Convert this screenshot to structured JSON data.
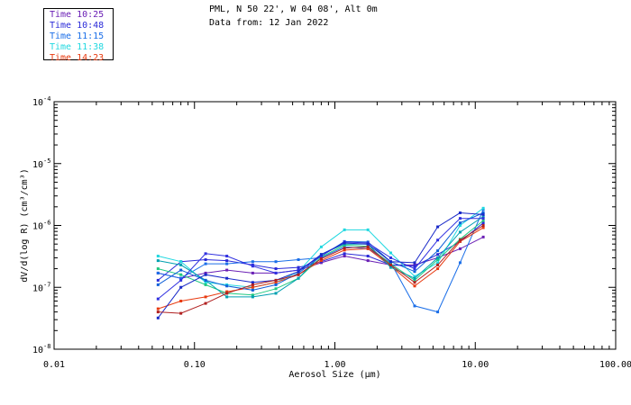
{
  "header": {
    "location": "PML, N 50 22', W 04 08', Alt 0m",
    "date": "Data from: 12 Jan 2022"
  },
  "chart_data": {
    "type": "line",
    "title": "",
    "xlabel": "Aerosol Size (μm)",
    "ylabel": "dV/d(log R) (cm³/cm³)",
    "xscale": "log",
    "yscale": "log",
    "xlim": [
      0.01,
      100
    ],
    "ylim": [
      1e-08,
      0.0001
    ],
    "x_ticks": [
      {
        "value": 0.01,
        "label": "0.01"
      },
      {
        "value": 0.1,
        "label": "0.10"
      },
      {
        "value": 1,
        "label": "1.00"
      },
      {
        "value": 10,
        "label": "10.00"
      },
      {
        "value": 100,
        "label": "100.00"
      }
    ],
    "y_ticks": [
      {
        "value": 1e-08,
        "mantissa": "10",
        "exponent": "-8"
      },
      {
        "value": 1e-07,
        "mantissa": "10",
        "exponent": "-7"
      },
      {
        "value": 1e-06,
        "mantissa": "10",
        "exponent": "-6"
      },
      {
        "value": 1e-05,
        "mantissa": "10",
        "exponent": "-5"
      },
      {
        "value": 0.0001,
        "mantissa": "10",
        "exponent": "-4"
      }
    ],
    "x": [
      0.055,
      0.08,
      0.12,
      0.17,
      0.26,
      0.38,
      0.55,
      0.8,
      1.17,
      1.72,
      2.5,
      3.7,
      5.4,
      7.8,
      11.4
    ],
    "series": [
      {
        "name": "Time 10:25",
        "color": "#6a1fb5",
        "values": [
          1.7e-07,
          1.4e-07,
          1.7e-07,
          1.9e-07,
          1.7e-07,
          1.7e-07,
          1.9e-07,
          2.5e-07,
          3.2e-07,
          2.7e-07,
          2.3e-07,
          2.3e-07,
          3e-07,
          4.2e-07,
          6.5e-07
        ]
      },
      {
        "name": "Time 10:48",
        "color": "#2a2ad8",
        "values": [
          1.3e-07,
          2.6e-07,
          2.8e-07,
          2.7e-07,
          2.3e-07,
          2e-07,
          2.1e-07,
          2.6e-07,
          3.5e-07,
          3.2e-07,
          2.3e-07,
          2.2e-07,
          3.4e-07,
          5.5e-07,
          1.1e-06
        ]
      },
      {
        "name": "Time 11:15",
        "color": "#1a6ee8",
        "values": [
          1.7e-07,
          1.4e-07,
          2.4e-07,
          2.4e-07,
          2.6e-07,
          2.6e-07,
          2.8e-07,
          3e-07,
          4.5e-07,
          4.2e-07,
          2.5e-07,
          5e-08,
          4e-08,
          2.5e-07,
          1.8e-06
        ]
      },
      {
        "name": "Time 11:38",
        "color": "#20d8e0",
        "values": [
          3.2e-07,
          2.6e-07,
          1.2e-07,
          1.1e-07,
          1e-07,
          1.2e-07,
          1.8e-07,
          4.5e-07,
          8.5e-07,
          8.5e-07,
          3.6e-07,
          1.5e-07,
          2.5e-07,
          1e-06,
          1.9e-06
        ]
      },
      {
        "name": "Time 14:23",
        "color": "#e83a10",
        "values": [
          4.5e-08,
          6e-08,
          7e-08,
          8.5e-08,
          1e-07,
          1.2e-07,
          1.6e-07,
          2.7e-07,
          4e-07,
          4.2e-07,
          2.2e-07,
          1.05e-07,
          2e-07,
          5.5e-07,
          9.2e-07
        ]
      },
      {
        "name": "",
        "color": "#20c880",
        "values": [
          2e-07,
          1.6e-07,
          1.1e-07,
          8e-08,
          7.5e-08,
          9.5e-08,
          1.4e-07,
          3.1e-07,
          4.8e-07,
          4.6e-07,
          2.4e-07,
          1.3e-07,
          2.8e-07,
          6e-07,
          1.2e-06
        ]
      },
      {
        "name": "",
        "color": "#00a0b0",
        "values": [
          2.7e-07,
          2.3e-07,
          1.3e-07,
          7e-08,
          7e-08,
          8e-08,
          1.4e-07,
          3.4e-07,
          5e-07,
          5e-07,
          2.1e-07,
          1.4e-07,
          3e-07,
          7.8e-07,
          1.4e-06
        ]
      },
      {
        "name": "",
        "color": "#1060d8",
        "values": [
          1.1e-07,
          1.9e-07,
          1.3e-07,
          1.05e-07,
          9e-08,
          1.1e-07,
          1.7e-07,
          3.2e-07,
          5.5e-07,
          5.4e-07,
          2.6e-07,
          1.8e-07,
          3.9e-07,
          1.1e-06,
          1.6e-06
        ]
      },
      {
        "name": "",
        "color": "#3030e0",
        "values": [
          6.5e-08,
          1.3e-07,
          3.5e-07,
          3.2e-07,
          2.2e-07,
          1.7e-07,
          1.9e-07,
          3.2e-07,
          5.4e-07,
          5.2e-07,
          3e-07,
          2e-07,
          5.8e-07,
          1.3e-06,
          1.3e-06
        ]
      },
      {
        "name": "",
        "color": "#1828c8",
        "values": [
          3.2e-08,
          1e-07,
          1.6e-07,
          1.4e-07,
          1.2e-07,
          1.3e-07,
          1.8e-07,
          3.4e-07,
          5.2e-07,
          5e-07,
          2.6e-07,
          2.5e-07,
          9.5e-07,
          1.6e-06,
          1.5e-06
        ]
      },
      {
        "name": "",
        "color": "#b02020",
        "values": [
          4e-08,
          3.8e-08,
          5.5e-08,
          8e-08,
          1.1e-07,
          1.3e-07,
          1.6e-07,
          2.9e-07,
          4.3e-07,
          4.5e-07,
          2.3e-07,
          1.2e-07,
          2.3e-07,
          5.8e-07,
          1e-06
        ]
      }
    ]
  }
}
